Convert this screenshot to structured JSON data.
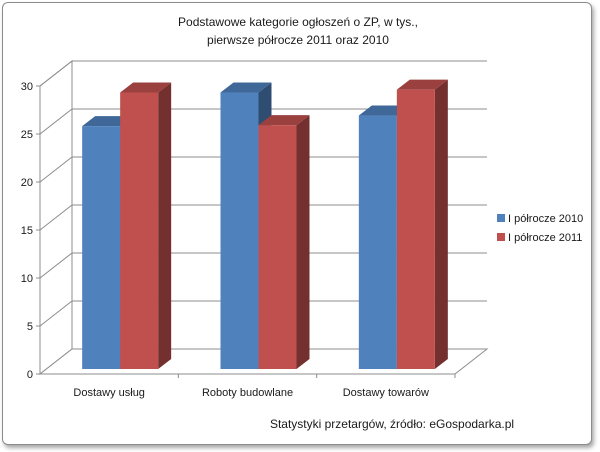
{
  "chart_data": {
    "type": "bar",
    "title": "Podstawowe kategorie ogłoszeń o ZP, w tys.,",
    "subtitle": "pierwsze półrocze 2011 oraz 2010",
    "categories": [
      "Dostawy usług",
      "Roboty budowlane",
      "Dostawy towarów"
    ],
    "series": [
      {
        "name": "I półrocze 2010",
        "values": [
          25.3,
          28.8,
          26.4
        ],
        "color": "#4f81bd"
      },
      {
        "name": "I półrocze 2011",
        "values": [
          28.8,
          25.4,
          29.1
        ],
        "color": "#c0504d"
      }
    ],
    "yticks": [
      "0",
      "5",
      "10",
      "15",
      "20",
      "25",
      "30"
    ],
    "ylim": [
      0,
      30
    ],
    "grid": true,
    "legend_position": "right",
    "three_d": true
  },
  "footer": {
    "source_note": "Statystyki przetargów, źródło: eGospodarka.pl"
  }
}
